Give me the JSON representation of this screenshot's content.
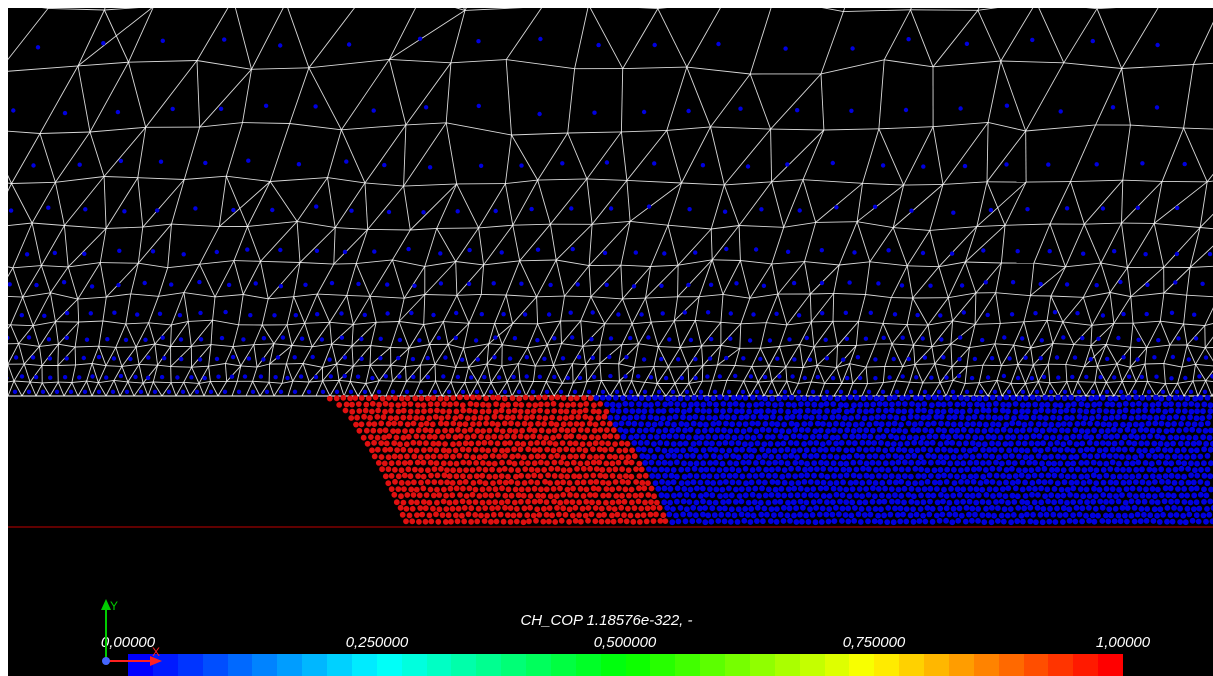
{
  "colormap": {
    "title": "CH_COP 1.18576e-322, -",
    "ticks": [
      "0,00000",
      "0,250000",
      "0,500000",
      "0,750000",
      "1,00000"
    ],
    "range": [
      0,
      1
    ],
    "colors": [
      "#0000ff",
      "#00ffff",
      "#00ff00",
      "#ffff00",
      "#ff0000"
    ],
    "bands": 40
  },
  "scene": {
    "background": "#000000",
    "mesh_color": "#ffffff",
    "particle_color_low": "#0000e0",
    "particle_color_high": "#e01010",
    "boundary_color": "#c00000"
  },
  "axes": {
    "y_label": "Y",
    "x_label": "X",
    "y_color": "#00cc00",
    "x_color": "#ff2020"
  }
}
